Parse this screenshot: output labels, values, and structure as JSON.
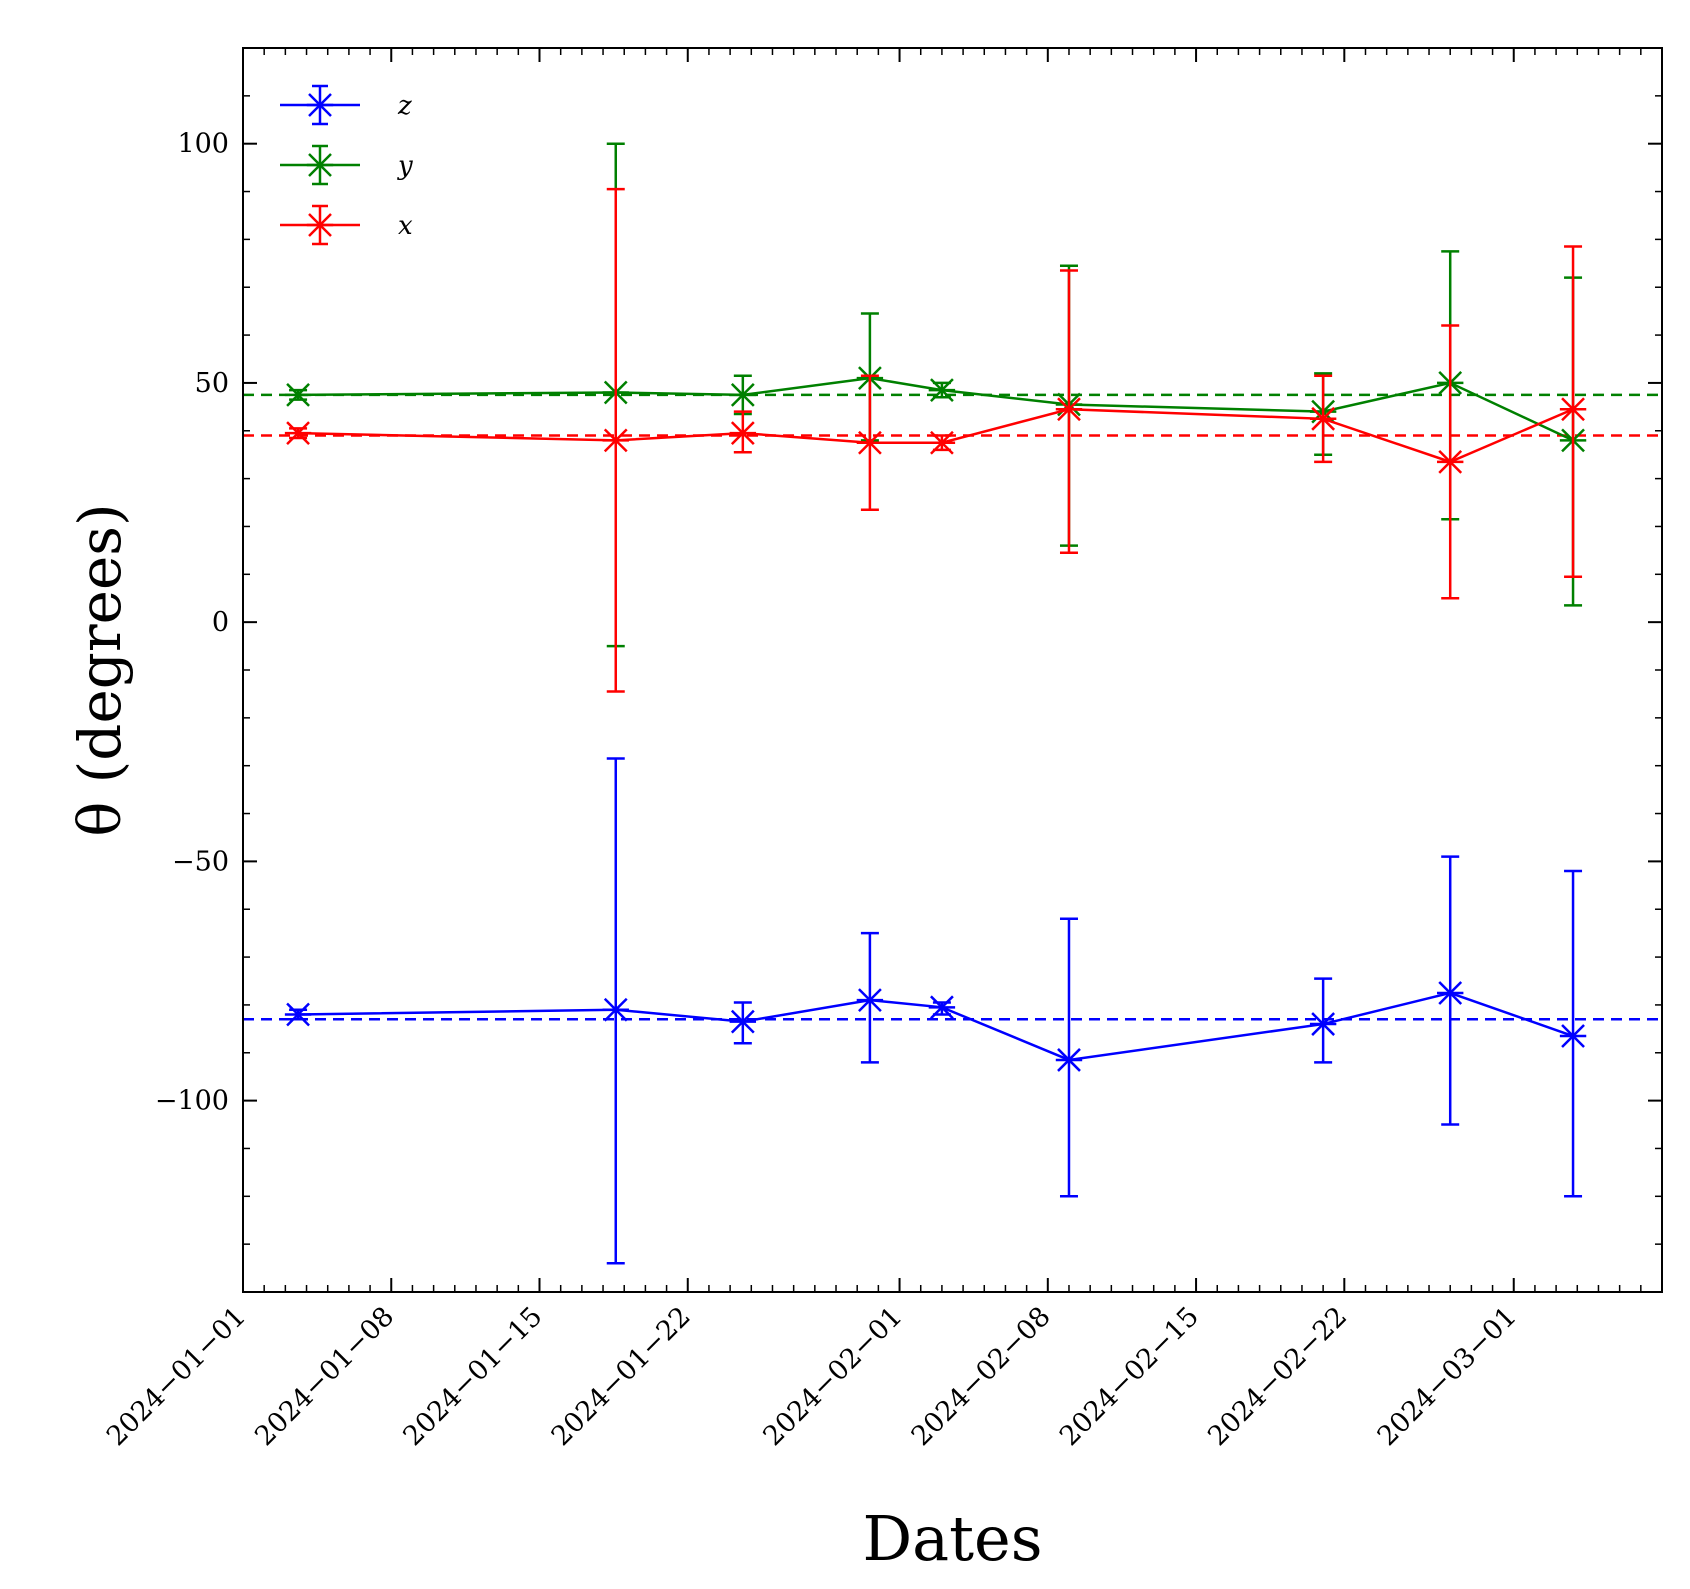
{
  "chart_data": {
    "type": "line",
    "xlabel": "Dates",
    "ylabel": "θ (degrees)",
    "ylim": [
      -140,
      120
    ],
    "yticks": [
      100,
      50,
      0,
      -50,
      -100
    ],
    "ytick_labels": [
      "100",
      "50",
      "0",
      "−50",
      "−100"
    ],
    "xlim_days": [
      0,
      67
    ],
    "xtick_days": [
      0,
      7,
      14,
      21,
      31,
      38,
      45,
      52,
      60
    ],
    "xtick_labels": [
      "2024−01−01",
      "2024−01−08",
      "2024−01−15",
      "2024−01−22",
      "2024−02−01",
      "2024−02−08",
      "2024−02−15",
      "2024−02−22",
      "2024−03−01"
    ],
    "x_days": [
      2.6,
      17.6,
      23.6,
      29.6,
      33.0,
      39.0,
      51.0,
      57.0,
      62.8
    ],
    "series": [
      {
        "name": "z",
        "color": "#0000ff",
        "values": [
          -82,
          -81,
          -83.5,
          -79,
          -80.5,
          -91.5,
          -84,
          -77.5,
          -86.5
        ],
        "err_low": [
          -83,
          -134,
          -88,
          -92,
          -82,
          -120,
          -92,
          -105,
          -120
        ],
        "err_high": [
          -81,
          -28.5,
          -79.5,
          -65,
          -79.5,
          -62,
          -74.5,
          -49,
          -52
        ],
        "mean": -83
      },
      {
        "name": "y",
        "color": "#008000",
        "values": [
          47.5,
          48,
          47.5,
          51,
          48.5,
          45.5,
          44,
          50,
          38
        ],
        "err_low": [
          46.5,
          -5,
          43.5,
          38,
          47,
          16,
          35,
          21.5,
          3.5
        ],
        "err_high": [
          48.5,
          100,
          51.5,
          64.5,
          50,
          74.5,
          52,
          77.5,
          72
        ],
        "mean": 47.5
      },
      {
        "name": "x",
        "color": "#ff0000",
        "values": [
          39.5,
          38,
          39.5,
          37.5,
          37.5,
          44.5,
          42.5,
          33.5,
          44.5
        ],
        "err_low": [
          38.5,
          -14.5,
          35.5,
          23.5,
          36,
          14.5,
          33.5,
          5,
          9.5
        ],
        "err_high": [
          40.5,
          90.5,
          44,
          51.5,
          39,
          73.5,
          51.5,
          62,
          78.5
        ],
        "mean": 39
      }
    ],
    "legend": {
      "placement": "top-left",
      "entries": [
        "z",
        "y",
        "x"
      ]
    }
  }
}
